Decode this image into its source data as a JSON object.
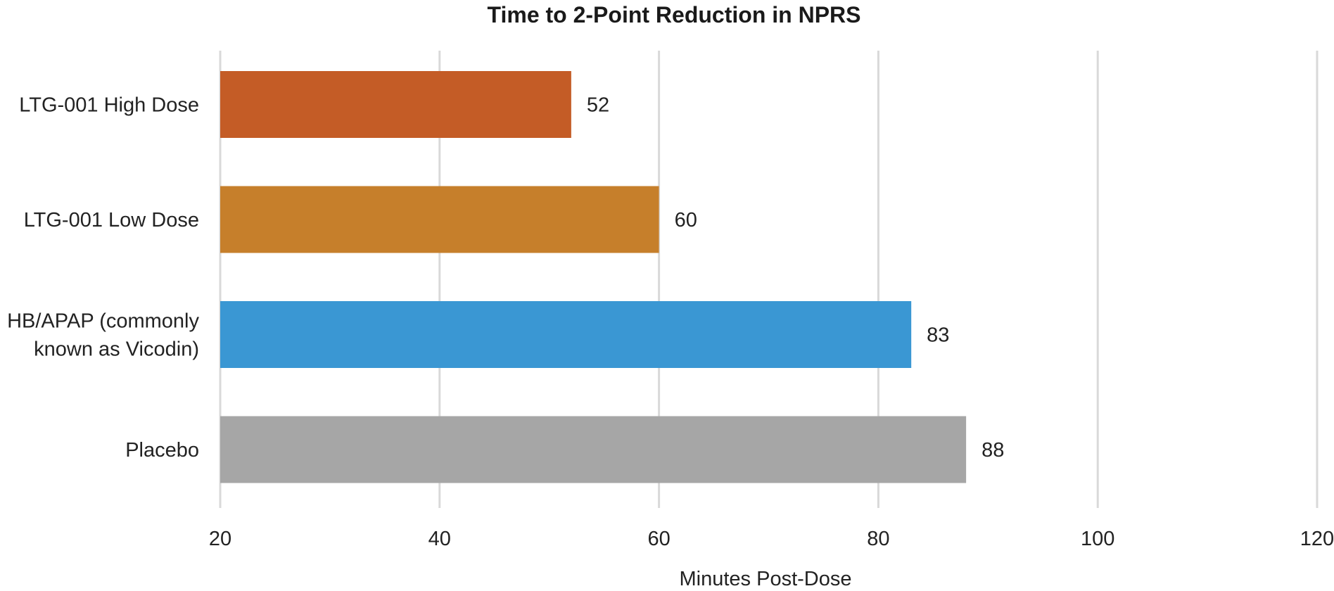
{
  "chart_data": {
    "type": "bar",
    "orientation": "horizontal",
    "title": "Time to 2-Point Reduction in NPRS",
    "xlabel": "Minutes Post-Dose",
    "ylabel": "",
    "categories": [
      [
        "LTG-001 High Dose"
      ],
      [
        "LTG-001 Low Dose"
      ],
      [
        "HB/APAP (commonly",
        "known as Vicodin)"
      ],
      [
        "Placebo"
      ]
    ],
    "values": [
      52,
      60,
      83,
      88
    ],
    "data_labels": [
      "52",
      "60",
      "83",
      "88"
    ],
    "colors": [
      "#C45C26",
      "#C67F2B",
      "#3A97D3",
      "#A6A6A6"
    ],
    "xlim": [
      20,
      120
    ],
    "ticks": [
      20,
      40,
      60,
      80,
      100,
      120
    ],
    "tick_labels": [
      "20",
      "40",
      "60",
      "80",
      "100",
      "120"
    ],
    "grid": true,
    "legend": "none"
  }
}
